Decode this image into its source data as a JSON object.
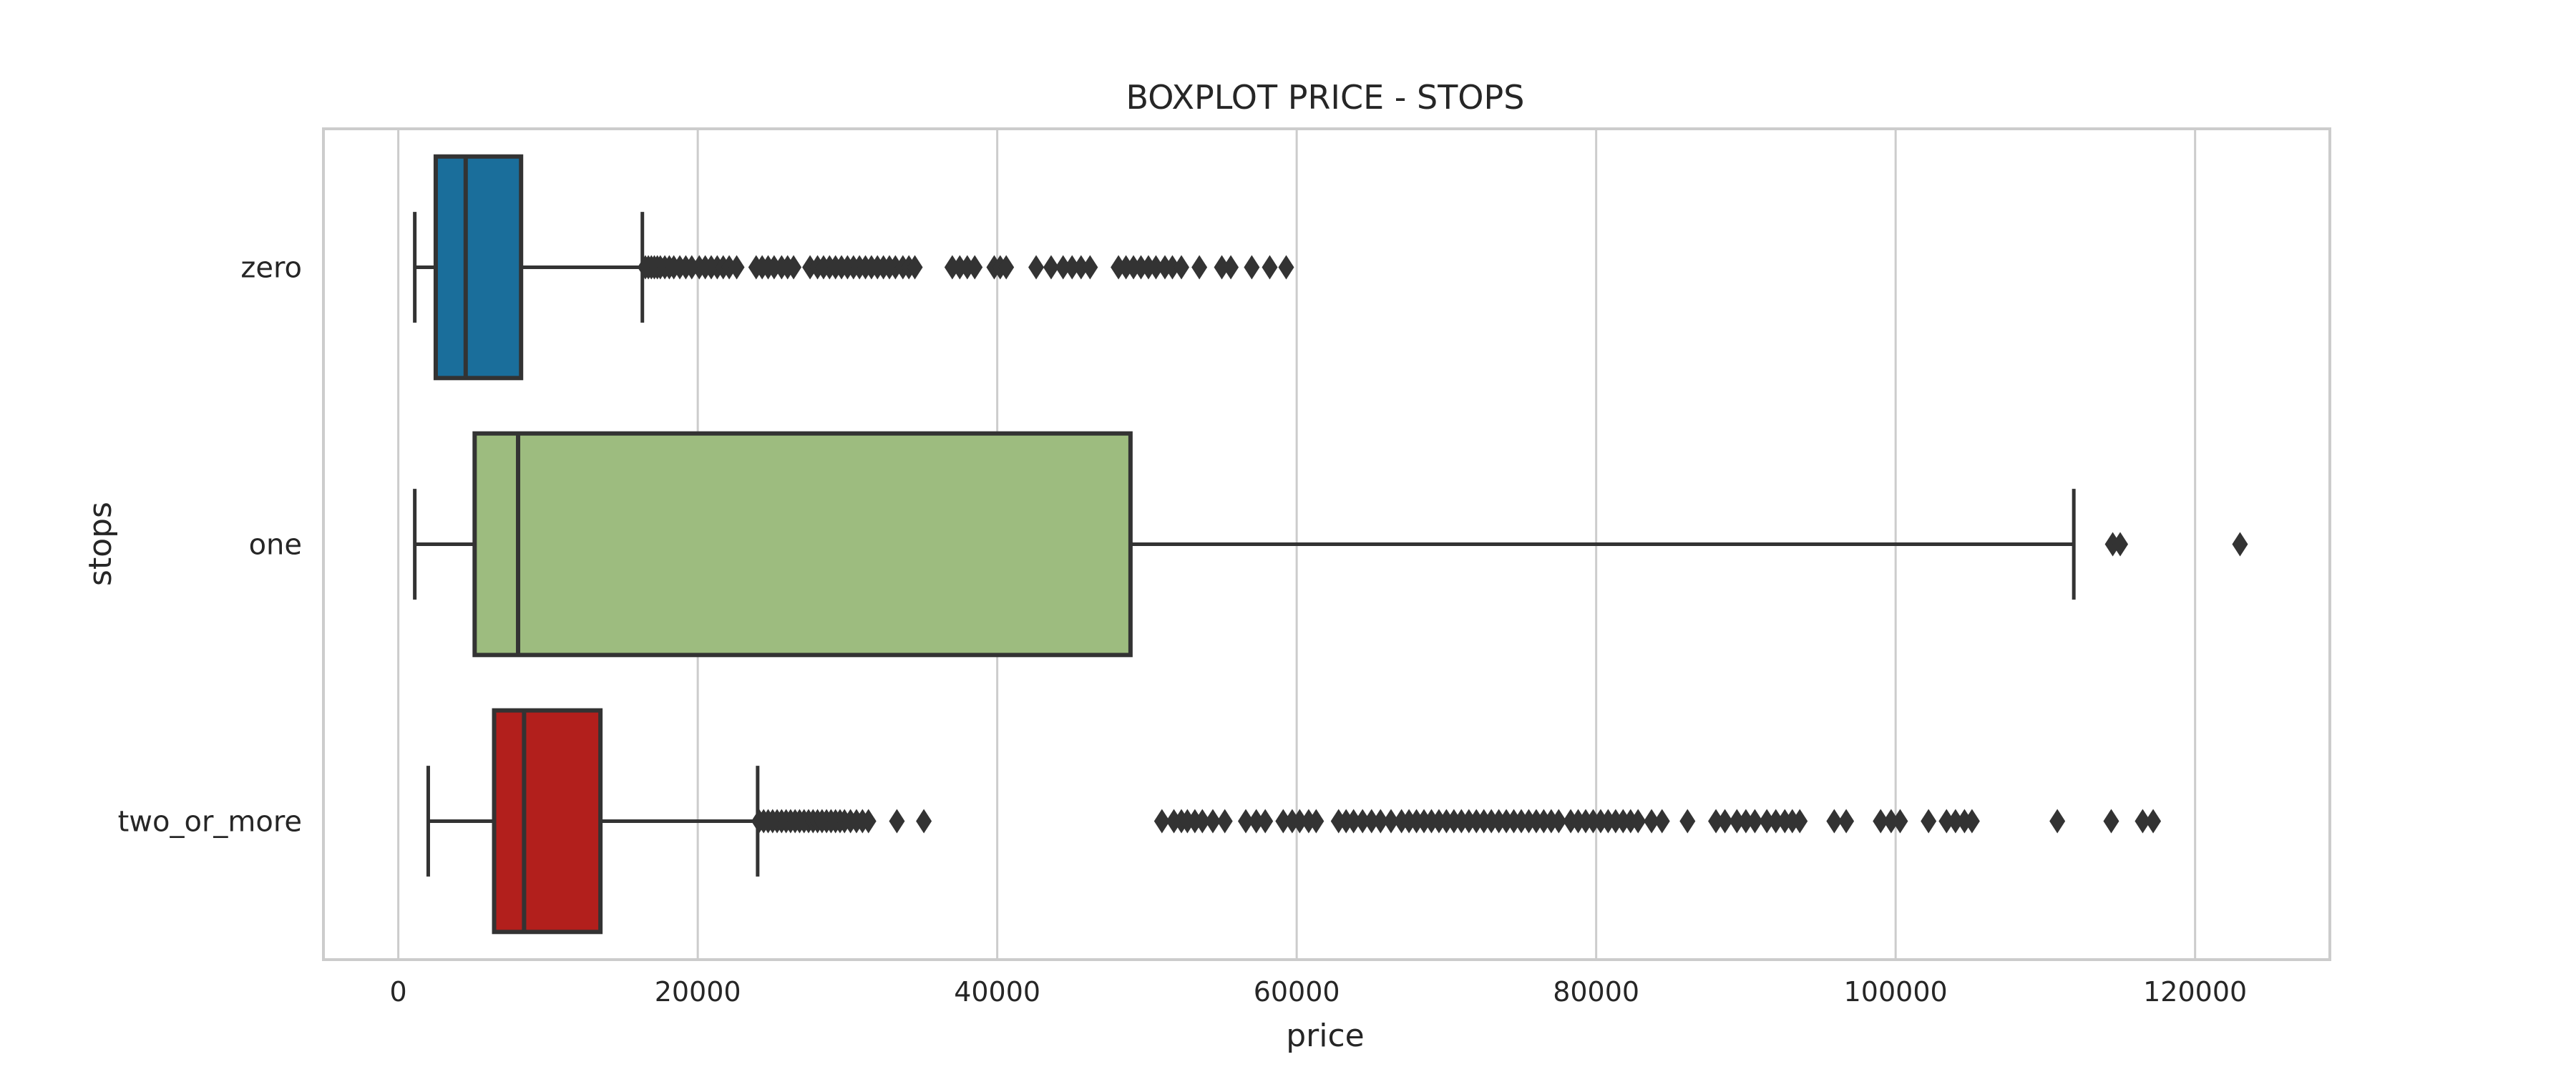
{
  "chart_data": {
    "type": "boxplot",
    "title": "BOXPLOT PRICE - STOPS",
    "xlabel": "price",
    "ylabel": "stops",
    "orientation": "horizontal",
    "xlim": [
      -5000,
      129000
    ],
    "xticks": [
      0,
      20000,
      40000,
      60000,
      80000,
      100000,
      120000
    ],
    "xtick_labels": [
      "0",
      "20000",
      "40000",
      "60000",
      "80000",
      "100000",
      "120000"
    ],
    "grid": true,
    "categories": [
      "zero",
      "one",
      "two_or_more"
    ],
    "colors": [
      "#1a6e9b",
      "#9dbc7f",
      "#b21f1c"
    ],
    "edge_color": "#333333",
    "boxes": [
      {
        "category": "zero",
        "whisker_low": 1100,
        "q1": 2500,
        "median": 4500,
        "q3": 8200,
        "whisker_high": 16300,
        "outliers": [
          16500,
          16700,
          16900,
          17100,
          17300,
          17500,
          17800,
          18100,
          18400,
          18800,
          19200,
          19600,
          20100,
          20500,
          20900,
          21300,
          21700,
          22100,
          22600,
          23900,
          24300,
          24700,
          25100,
          25600,
          26000,
          26400,
          27500,
          28000,
          28400,
          28800,
          29200,
          29600,
          30000,
          30400,
          30800,
          31200,
          31600,
          32000,
          32400,
          32800,
          33200,
          33700,
          34100,
          34500,
          37000,
          37500,
          38000,
          38500,
          39800,
          40200,
          40600,
          42600,
          43600,
          44400,
          45000,
          45600,
          46200,
          48100,
          48600,
          49100,
          49600,
          50100,
          50600,
          51200,
          51700,
          52300,
          53500,
          55000,
          55600,
          57000,
          58200,
          59300
        ]
      },
      {
        "category": "one",
        "whisker_low": 1100,
        "q1": 5100,
        "median": 8000,
        "q3": 48900,
        "whisker_high": 111900,
        "outliers": [
          114500,
          115000,
          123000
        ]
      },
      {
        "category": "two_or_more",
        "whisker_low": 2000,
        "q1": 6400,
        "median": 8400,
        "q3": 13500,
        "whisker_high": 24000,
        "outliers": [
          24100,
          24400,
          24700,
          25000,
          25300,
          25600,
          25900,
          26200,
          26500,
          26800,
          27100,
          27400,
          27700,
          28000,
          28300,
          28600,
          28900,
          29200,
          29500,
          29800,
          30200,
          30600,
          31000,
          31400,
          33300,
          35100,
          51000,
          51800,
          52300,
          52700,
          53200,
          53700,
          54400,
          55200,
          56600,
          57300,
          57900,
          59100,
          59700,
          60200,
          60800,
          61300,
          62800,
          63300,
          63800,
          64400,
          65000,
          65600,
          66300,
          67000,
          67500,
          68000,
          68500,
          69000,
          69500,
          70000,
          70500,
          71000,
          71500,
          72000,
          72500,
          73000,
          73500,
          74000,
          74500,
          75000,
          75500,
          76000,
          76500,
          77000,
          77500,
          78300,
          78800,
          79300,
          79800,
          80300,
          80800,
          81300,
          81800,
          82300,
          82800,
          83700,
          84400,
          86100,
          88000,
          88600,
          89400,
          90000,
          90600,
          91400,
          92000,
          92600,
          93100,
          93600,
          95900,
          96700,
          99000,
          99700,
          100300,
          102200,
          103400,
          104000,
          104600,
          105100,
          110800,
          114400,
          116500,
          117200
        ]
      }
    ]
  }
}
